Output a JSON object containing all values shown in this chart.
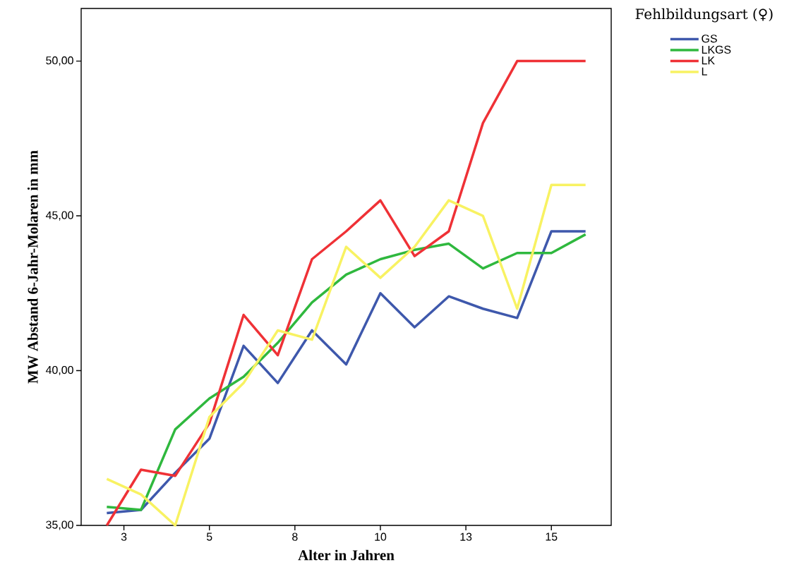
{
  "chart_data": {
    "type": "line",
    "xlabel": "Alter in Jahren",
    "ylabel": "MW Abstand 6-Jahr-Molaren in mm",
    "legend_title": "Fehlbildungsart (♀)",
    "x": [
      2,
      3,
      4,
      5,
      6,
      7,
      8,
      9,
      10,
      11,
      12,
      13,
      14,
      15,
      16
    ],
    "series": [
      {
        "name": "GS",
        "color": "#3e58ac",
        "values": [
          35.4,
          35.5,
          36.7,
          37.8,
          40.8,
          39.6,
          41.3,
          40.2,
          42.5,
          41.4,
          42.4,
          42.0,
          41.7,
          44.5,
          44.5
        ]
      },
      {
        "name": "LKGS",
        "color": "#2fb83e",
        "values": [
          35.6,
          35.5,
          38.1,
          39.1,
          39.8,
          40.9,
          42.2,
          43.1,
          43.6,
          43.9,
          44.1,
          43.3,
          43.8,
          43.8,
          44.4
        ]
      },
      {
        "name": "LK",
        "color": "#ef3136",
        "values": [
          35.0,
          36.8,
          36.6,
          38.3,
          41.8,
          40.5,
          43.6,
          44.5,
          45.5,
          43.7,
          44.5,
          48.0,
          50.0,
          50.0,
          50.0
        ]
      },
      {
        "name": "L",
        "color": "#f8f262",
        "values": [
          36.5,
          36.0,
          35.0,
          38.5,
          39.6,
          41.3,
          41.0,
          44.0,
          43.0,
          44.0,
          45.5,
          45.0,
          42.0,
          46.0,
          46.0
        ]
      }
    ],
    "xlim": [
      1.25,
      16.75
    ],
    "xticks": [
      {
        "value": 2.5,
        "label": "3"
      },
      {
        "value": 5,
        "label": "5"
      },
      {
        "value": 7.5,
        "label": "8"
      },
      {
        "value": 10,
        "label": "10"
      },
      {
        "value": 12.5,
        "label": "13"
      },
      {
        "value": 15,
        "label": "15"
      }
    ],
    "ylim": [
      35,
      51.7
    ],
    "yticks": [
      {
        "value": 35,
        "label": "35,00"
      },
      {
        "value": 40,
        "label": "40,00"
      },
      {
        "value": 45,
        "label": "45,00"
      },
      {
        "value": 50,
        "label": "50,00"
      }
    ],
    "grid": false,
    "legend": "top right",
    "marker": "none",
    "line_style": "solid"
  }
}
